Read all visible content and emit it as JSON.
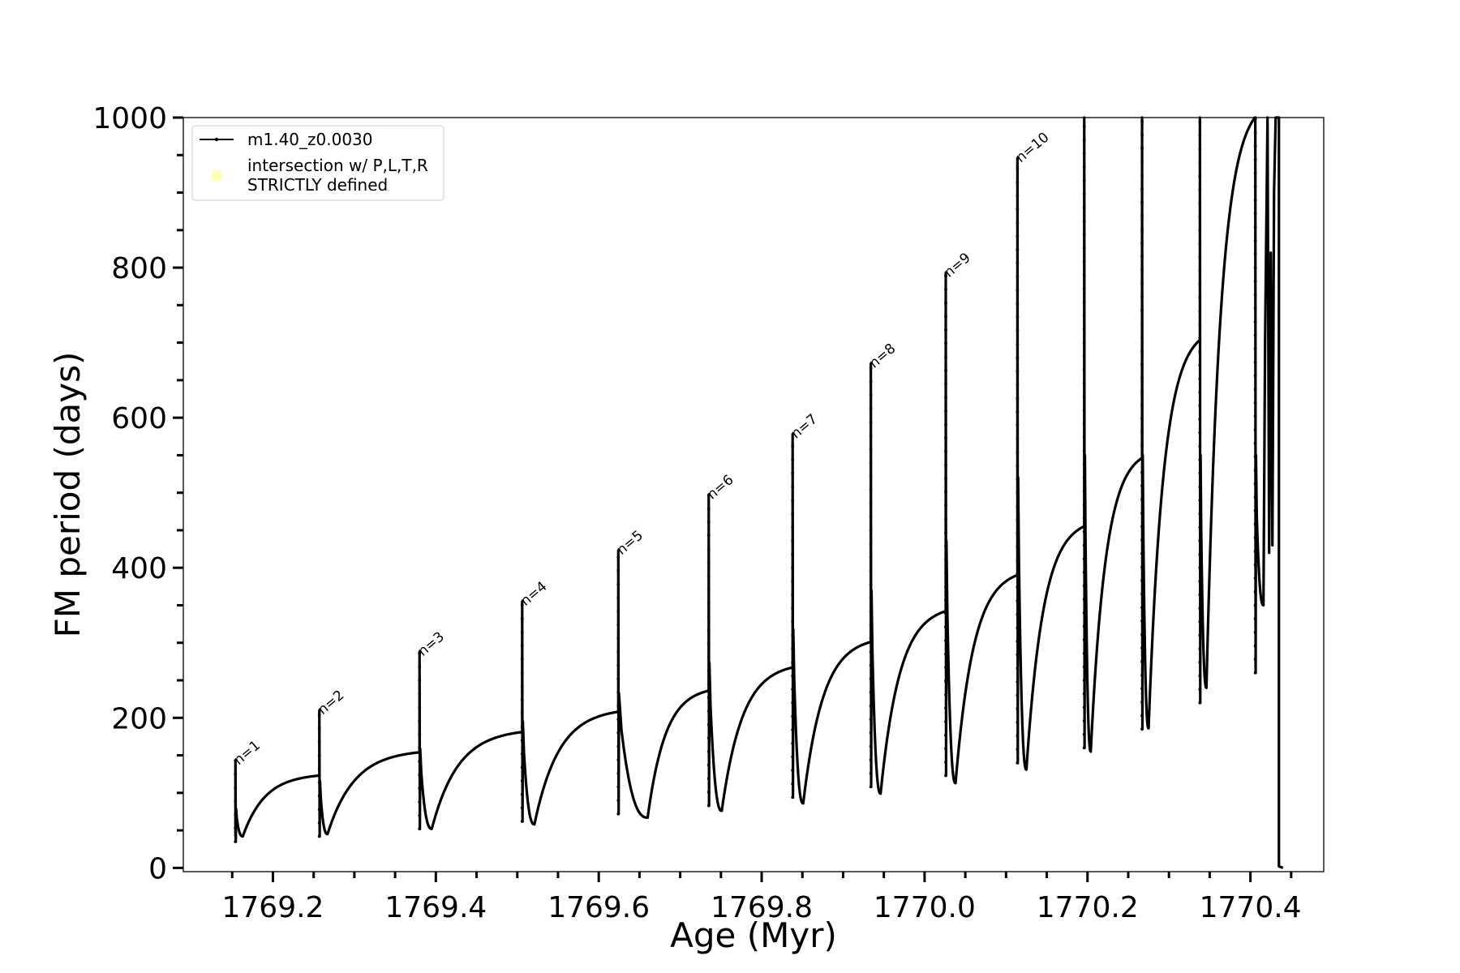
{
  "chart_data": {
    "type": "line",
    "title": "",
    "xlabel": "Age (Myr)",
    "ylabel": "FM period (days)",
    "xlim": [
      1769.09,
      1770.49
    ],
    "ylim": [
      -5,
      1000
    ],
    "grid": false,
    "legend_position": "top-left",
    "x_ticks": [
      "1769.2",
      "1769.4",
      "1769.6",
      "1769.8",
      "1770.0",
      "1770.2",
      "1770.4"
    ],
    "x_tick_values": [
      1769.2,
      1769.4,
      1769.6,
      1769.8,
      1770.0,
      1770.2,
      1770.4
    ],
    "x_minor_ticks": [
      1769.15,
      1769.25,
      1769.3,
      1769.35,
      1769.45,
      1769.5,
      1769.55,
      1769.65,
      1769.7,
      1769.75,
      1769.85,
      1769.9,
      1769.95,
      1770.05,
      1770.1,
      1770.15,
      1770.25,
      1770.3,
      1770.35,
      1770.45
    ],
    "y_ticks": [
      "0",
      "200",
      "400",
      "600",
      "800",
      "1000"
    ],
    "y_tick_values": [
      0,
      200,
      400,
      600,
      800,
      1000
    ],
    "y_minor_ticks": [
      50,
      100,
      150,
      250,
      300,
      350,
      450,
      500,
      550,
      650,
      700,
      750,
      850,
      900,
      950
    ],
    "legend": [
      {
        "label": "m1.40_z0.0030",
        "kind": "line-with-dots",
        "color": "#000000"
      },
      {
        "label_line1": "intersection w/ P,L,T,R",
        "label_line2": "STRICTLY defined",
        "kind": "marker",
        "color": "#ffffb3"
      }
    ],
    "series": [
      {
        "name": "m1.40_z0.0030",
        "color": "#000000",
        "pulses": [
          {
            "x": 1769.154,
            "prev_top": null,
            "peak": 143,
            "low": 35,
            "min_x": 1769.163,
            "min": 42
          },
          {
            "x": 1769.257,
            "prev_top": 123,
            "peak": 210,
            "low": 42,
            "min_x": 1769.267,
            "min": 45
          },
          {
            "x": 1769.38,
            "prev_top": 154,
            "peak": 288,
            "low": 52,
            "min_x": 1769.395,
            "min": 52
          },
          {
            "x": 1769.506,
            "prev_top": 181,
            "peak": 355,
            "low": 62,
            "min_x": 1769.521,
            "min": 58
          },
          {
            "x": 1769.624,
            "prev_top": 208,
            "peak": 423,
            "low": 72,
            "min_x": 1769.66,
            "min": 67
          },
          {
            "x": 1769.735,
            "prev_top": 236,
            "peak": 497,
            "low": 83,
            "min_x": 1769.751,
            "min": 76
          },
          {
            "x": 1769.838,
            "prev_top": 267,
            "peak": 578,
            "low": 94,
            "min_x": 1769.851,
            "min": 86
          },
          {
            "x": 1769.934,
            "prev_top": 301,
            "peak": 672,
            "low": 108,
            "min_x": 1769.946,
            "min": 99
          },
          {
            "x": 1770.026,
            "prev_top": 342,
            "peak": 793,
            "low": 123,
            "min_x": 1770.038,
            "min": 113
          },
          {
            "x": 1770.114,
            "prev_top": 390,
            "peak": 946,
            "low": 140,
            "min_x": 1770.125,
            "min": 131
          },
          {
            "x": 1770.196,
            "prev_top": 455,
            "peak": 1000,
            "low": 160,
            "min_x": 1770.204,
            "min": 155
          },
          {
            "x": 1770.267,
            "prev_top": 546,
            "peak": 1000,
            "low": 185,
            "min_x": 1770.275,
            "min": 186
          },
          {
            "x": 1770.338,
            "prev_top": 703,
            "peak": 1000,
            "low": 220,
            "min_x": 1770.346,
            "min": 240
          },
          {
            "x": 1770.406,
            "prev_top": 1000,
            "peak": 1000,
            "low": 260,
            "min_x": 1770.416,
            "min": 350
          }
        ],
        "final": {
          "x_start": 1770.416,
          "x_end": 1770.44,
          "x_drop": 1770.435,
          "min": 0
        }
      }
    ],
    "annotations": [
      {
        "text": "n=1",
        "x": 1769.154,
        "y": 143
      },
      {
        "text": "n=2",
        "x": 1769.257,
        "y": 210
      },
      {
        "text": "n=3",
        "x": 1769.38,
        "y": 288
      },
      {
        "text": "n=4",
        "x": 1769.506,
        "y": 355
      },
      {
        "text": "n=5",
        "x": 1769.624,
        "y": 423
      },
      {
        "text": "n=6",
        "x": 1769.735,
        "y": 497
      },
      {
        "text": "n=7",
        "x": 1769.838,
        "y": 578
      },
      {
        "text": "n=8",
        "x": 1769.934,
        "y": 672
      },
      {
        "text": "n=9",
        "x": 1770.026,
        "y": 793
      },
      {
        "text": "n=10",
        "x": 1770.114,
        "y": 946
      }
    ]
  }
}
